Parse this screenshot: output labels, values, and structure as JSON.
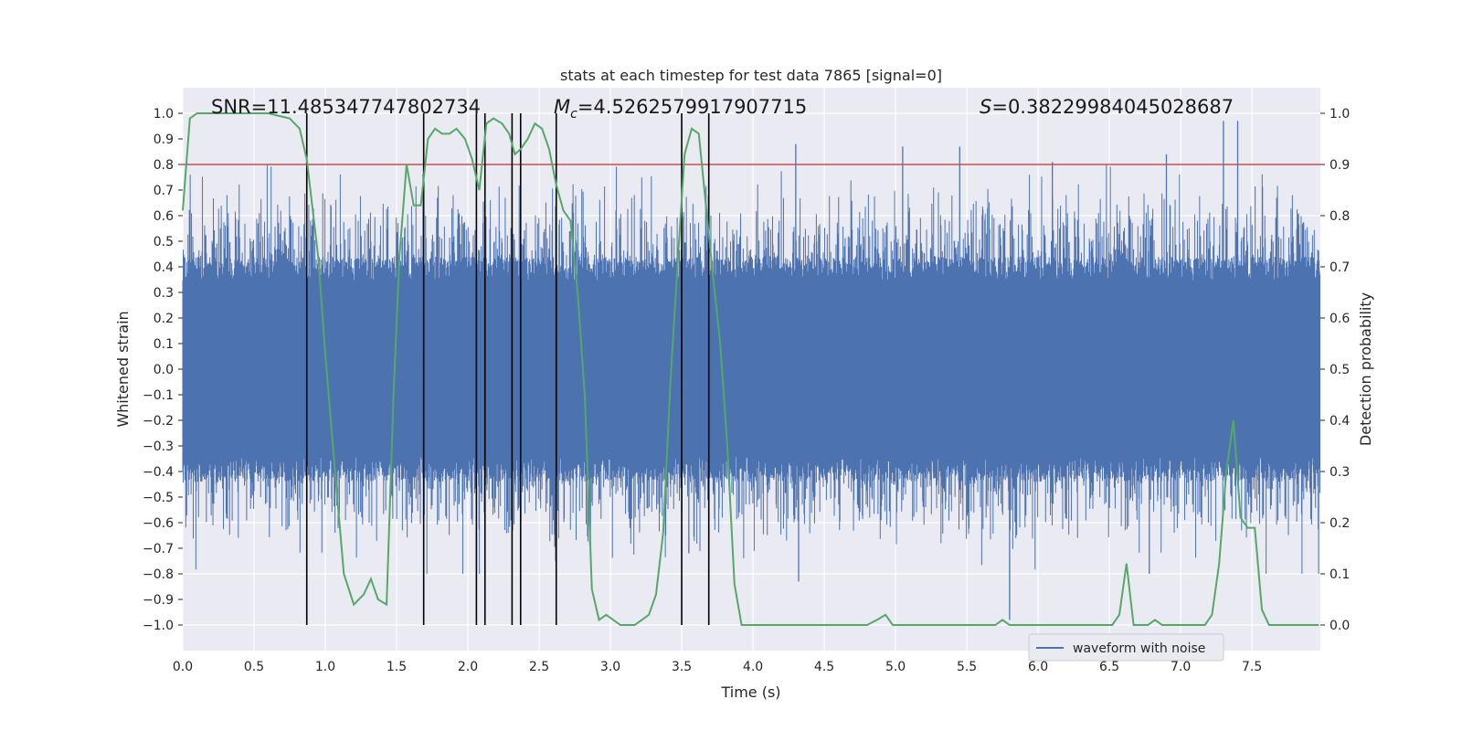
{
  "chart_data": {
    "type": "line",
    "title": "stats at each timestep for test data 7865 [signal=0]",
    "xlabel": "Time (s)",
    "ylabel": "Whitened strain",
    "y2label": "Detection probability",
    "xlim": [
      0.0,
      7.98
    ],
    "ylim": [
      -1.1,
      1.1
    ],
    "y2lim": [
      -0.05,
      1.05
    ],
    "x_ticks": [
      0.0,
      0.5,
      1.0,
      1.5,
      2.0,
      2.5,
      3.0,
      3.5,
      4.0,
      4.5,
      5.0,
      5.5,
      6.0,
      6.5,
      7.0,
      7.5
    ],
    "x_tick_labels": [
      "0.0",
      "0.5",
      "1.0",
      "1.5",
      "2.0",
      "2.5",
      "3.0",
      "3.5",
      "4.0",
      "4.5",
      "5.0",
      "5.5",
      "6.0",
      "6.5",
      "7.0",
      "7.5"
    ],
    "y_ticks": [
      1.0,
      0.9,
      0.8,
      0.7,
      0.6,
      0.5,
      0.4,
      0.3,
      0.2,
      0.1,
      0.0,
      -0.1,
      -0.2,
      -0.3,
      -0.4,
      -0.5,
      -0.6,
      -0.7,
      -0.8,
      -0.9,
      -1.0
    ],
    "y_tick_labels": [
      "1.0",
      "0.9",
      "0.8",
      "0.7",
      "0.6",
      "0.5",
      "0.4",
      "0.3",
      "0.2",
      "0.1",
      "0.0",
      "−0.1",
      "−0.2",
      "−0.3",
      "−0.4",
      "−0.5",
      "−0.6",
      "−0.7",
      "−0.8",
      "−0.9",
      "−1.0"
    ],
    "y2_ticks": [
      1.0,
      0.9,
      0.8,
      0.7,
      0.6,
      0.5,
      0.4,
      0.3,
      0.2,
      0.1,
      0.0
    ],
    "y2_tick_labels": [
      "1.0",
      "0.9",
      "0.8",
      "0.7",
      "0.6",
      "0.5",
      "0.4",
      "0.3",
      "0.2",
      "0.1",
      "0.0"
    ],
    "grid": true,
    "annotations": {
      "snr": "SNR=11.485347747802734",
      "mc_symbol": "M",
      "mc_sub": "c",
      "mc_value": "=4.5262579917907715",
      "s_symbol": "S",
      "s_value": "=0.38229984045028687"
    },
    "threshold": {
      "y2": 0.9,
      "color": "#c44e52"
    },
    "vertical_markers": {
      "x": [
        0.87,
        1.69,
        2.06,
        2.12,
        2.31,
        2.37,
        2.62,
        3.5,
        3.69
      ],
      "ymin": -1.0,
      "ymax": 1.0,
      "color": "#000000"
    },
    "series": [
      {
        "name": "waveform with noise",
        "color": "#4c72b0",
        "kind": "noise",
        "core_amplitude": 0.4,
        "peaks": [
          {
            "x": 5.8,
            "y": -0.98
          },
          {
            "x": 3.55,
            "y": -0.72
          },
          {
            "x": 7.4,
            "y": 0.97
          },
          {
            "x": 7.3,
            "y": 0.97
          },
          {
            "x": 4.3,
            "y": 0.88
          },
          {
            "x": 5.05,
            "y": 0.87
          },
          {
            "x": 5.45,
            "y": 0.87
          },
          {
            "x": 6.9,
            "y": 0.84
          },
          {
            "x": 6.1,
            "y": 0.81
          },
          {
            "x": 4.32,
            "y": -0.83
          },
          {
            "x": 6.78,
            "y": -0.8
          }
        ]
      },
      {
        "name": "detection probability",
        "color": "#55a868",
        "axis": "y2",
        "x": [
          0.0,
          0.05,
          0.1,
          0.2,
          0.4,
          0.6,
          0.75,
          0.82,
          0.87,
          0.95,
          1.0,
          1.05,
          1.13,
          1.2,
          1.27,
          1.32,
          1.37,
          1.43,
          1.48,
          1.52,
          1.57,
          1.62,
          1.67,
          1.72,
          1.77,
          1.82,
          1.87,
          1.92,
          1.98,
          2.03,
          2.08,
          2.13,
          2.18,
          2.24,
          2.29,
          2.33,
          2.37,
          2.42,
          2.47,
          2.52,
          2.57,
          2.62,
          2.67,
          2.72,
          2.77,
          2.82,
          2.87,
          2.92,
          2.97,
          3.02,
          3.07,
          3.12,
          3.17,
          3.22,
          3.27,
          3.32,
          3.37,
          3.42,
          3.47,
          3.52,
          3.57,
          3.62,
          3.67,
          3.72,
          3.77,
          3.82,
          3.87,
          3.92,
          3.97,
          4.05,
          4.2,
          4.5,
          4.8,
          4.87,
          4.93,
          4.98,
          5.1,
          5.4,
          5.55,
          5.7,
          5.75,
          5.8,
          5.9,
          6.0,
          6.2,
          6.42,
          6.47,
          6.52,
          6.57,
          6.62,
          6.67,
          6.72,
          6.77,
          6.82,
          6.87,
          6.92,
          6.97,
          7.02,
          7.07,
          7.12,
          7.17,
          7.22,
          7.27,
          7.32,
          7.37,
          7.42,
          7.47,
          7.52,
          7.57,
          7.62,
          7.67,
          7.72,
          7.77,
          7.87,
          7.97
        ],
        "y": [
          0.81,
          0.99,
          1.0,
          1.0,
          1.0,
          1.0,
          0.99,
          0.97,
          0.91,
          0.72,
          0.53,
          0.36,
          0.1,
          0.04,
          0.06,
          0.09,
          0.05,
          0.04,
          0.46,
          0.72,
          0.9,
          0.82,
          0.82,
          0.95,
          0.97,
          0.96,
          0.96,
          0.97,
          0.95,
          0.91,
          0.85,
          0.98,
          0.99,
          0.98,
          0.96,
          0.92,
          0.93,
          0.95,
          0.98,
          0.97,
          0.93,
          0.86,
          0.81,
          0.79,
          0.65,
          0.45,
          0.07,
          0.01,
          0.02,
          0.01,
          0.0,
          0.0,
          0.0,
          0.01,
          0.02,
          0.06,
          0.18,
          0.47,
          0.7,
          0.92,
          0.97,
          0.96,
          0.82,
          0.68,
          0.55,
          0.35,
          0.08,
          0.0,
          0.0,
          0.0,
          0.0,
          0.0,
          0.0,
          0.01,
          0.02,
          0.0,
          0.0,
          0.0,
          0.0,
          0.0,
          0.01,
          0.0,
          0.0,
          0.0,
          0.0,
          0.0,
          0.0,
          0.0,
          0.02,
          0.12,
          0.0,
          0.0,
          0.0,
          0.01,
          0.0,
          0.0,
          0.0,
          0.0,
          0.0,
          0.0,
          0.0,
          0.02,
          0.12,
          0.3,
          0.4,
          0.21,
          0.19,
          0.19,
          0.03,
          0.0,
          0.0,
          0.0,
          0.0,
          0.0,
          0.0
        ]
      }
    ]
  }
}
